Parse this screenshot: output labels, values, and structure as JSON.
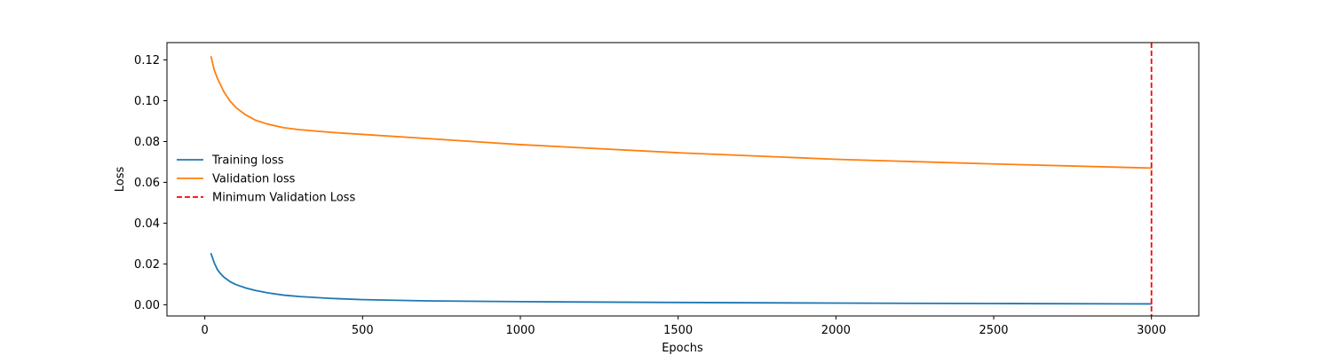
{
  "chart_data": {
    "type": "line",
    "title": "",
    "xlabel": "Epochs",
    "ylabel": "Loss",
    "xlim": [
      -120,
      3150
    ],
    "ylim": [
      -0.0055,
      0.1285
    ],
    "xticks": [
      0,
      500,
      1000,
      1500,
      2000,
      2500,
      3000
    ],
    "xtick_labels": [
      "0",
      "500",
      "1000",
      "1500",
      "2000",
      "2500",
      "3000"
    ],
    "yticks": [
      0.0,
      0.02,
      0.04,
      0.06,
      0.08,
      0.1,
      0.12
    ],
    "ytick_labels": [
      "0.00",
      "0.02",
      "0.04",
      "0.06",
      "0.08",
      "0.10",
      "0.12"
    ],
    "grid": false,
    "legend_position": "center-left",
    "series": [
      {
        "name": "Training loss",
        "color": "#1f77b4",
        "style": "solid",
        "x": [
          20,
          30,
          40,
          50,
          60,
          80,
          100,
          130,
          160,
          200,
          250,
          300,
          400,
          500,
          700,
          1000,
          1500,
          2000,
          2500,
          3000
        ],
        "y": [
          0.025,
          0.0205,
          0.0172,
          0.0152,
          0.0136,
          0.0113,
          0.0098,
          0.0082,
          0.007,
          0.0058,
          0.0047,
          0.004,
          0.0031,
          0.0025,
          0.0019,
          0.0015,
          0.0011,
          0.0008,
          0.0006,
          0.0004
        ]
      },
      {
        "name": "Validation loss",
        "color": "#ff7f0e",
        "style": "solid",
        "x": [
          20,
          30,
          40,
          60,
          80,
          100,
          130,
          160,
          200,
          250,
          300,
          400,
          500,
          700,
          1000,
          1500,
          2000,
          2500,
          3000
        ],
        "y": [
          0.1215,
          0.115,
          0.111,
          0.1045,
          0.0998,
          0.0965,
          0.093,
          0.0905,
          0.0885,
          0.0868,
          0.0858,
          0.0845,
          0.0835,
          0.0815,
          0.0785,
          0.0745,
          0.0713,
          0.069,
          0.067
        ]
      }
    ],
    "vline": {
      "name": "Minimum Validation Loss",
      "x": 3000,
      "color": "#ff0000",
      "style": "dashed"
    }
  }
}
